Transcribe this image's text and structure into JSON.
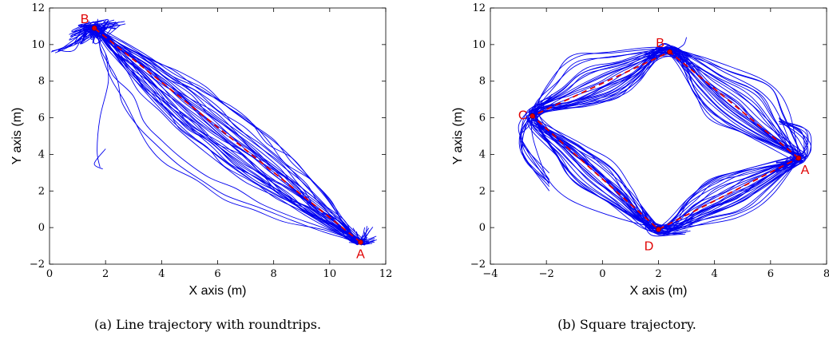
{
  "chart_data": [
    {
      "type": "line",
      "caption": "(a) Line trajectory with roundtrips.",
      "xlabel": "X axis (m)",
      "ylabel": "Y axis (m)",
      "xlim": [
        0,
        12
      ],
      "ylim": [
        -2,
        12
      ],
      "xticks": [
        0,
        2,
        4,
        6,
        8,
        10,
        12
      ],
      "yticks": [
        -2,
        0,
        2,
        4,
        6,
        8,
        10,
        12
      ],
      "grid": false,
      "colors": {
        "trajectory": "#0000ee",
        "reference": "#e00000"
      },
      "reference_path": {
        "style": "dashed",
        "x": [
          11.1,
          1.6
        ],
        "y": [
          -0.8,
          10.9
        ]
      },
      "points": [
        {
          "label": "A",
          "x": 11.1,
          "y": -0.8,
          "label_pos": "below"
        },
        {
          "label": "B",
          "x": 1.6,
          "y": 10.9,
          "label_pos": "above-left"
        }
      ],
      "trajectory_series": {
        "description_free": true,
        "spine_x": [
          11.1,
          10.9,
          10.0,
          8.5,
          7.0,
          5.5,
          4.0,
          3.0,
          2.2,
          1.6
        ],
        "spine_y": [
          -0.8,
          0.2,
          1.2,
          2.5,
          3.9,
          5.4,
          7.0,
          8.4,
          9.8,
          10.9
        ]
      }
    },
    {
      "type": "line",
      "caption": "(b) Square trajectory.",
      "xlabel": "X axis (m)",
      "ylabel": "Y axis (m)",
      "xlim": [
        -4,
        8
      ],
      "ylim": [
        -2,
        12
      ],
      "xticks": [
        -4,
        -2,
        0,
        2,
        4,
        6,
        8
      ],
      "yticks": [
        -2,
        0,
        2,
        4,
        6,
        8,
        10,
        12
      ],
      "grid": false,
      "colors": {
        "trajectory": "#0000ee",
        "reference": "#e00000"
      },
      "reference_path": {
        "style": "dashed",
        "x": [
          7.0,
          2.4,
          -2.5,
          2.0,
          7.0
        ],
        "y": [
          3.8,
          9.6,
          6.1,
          -0.1,
          3.8
        ]
      },
      "points": [
        {
          "label": "A",
          "x": 7.0,
          "y": 3.8,
          "label_pos": "below-right"
        },
        {
          "label": "B",
          "x": 2.4,
          "y": 9.6,
          "label_pos": "above-left"
        },
        {
          "label": "C",
          "x": -2.5,
          "y": 6.1,
          "label_pos": "left"
        },
        {
          "label": "D",
          "x": 2.0,
          "y": -0.1,
          "label_pos": "below-left"
        }
      ]
    }
  ]
}
